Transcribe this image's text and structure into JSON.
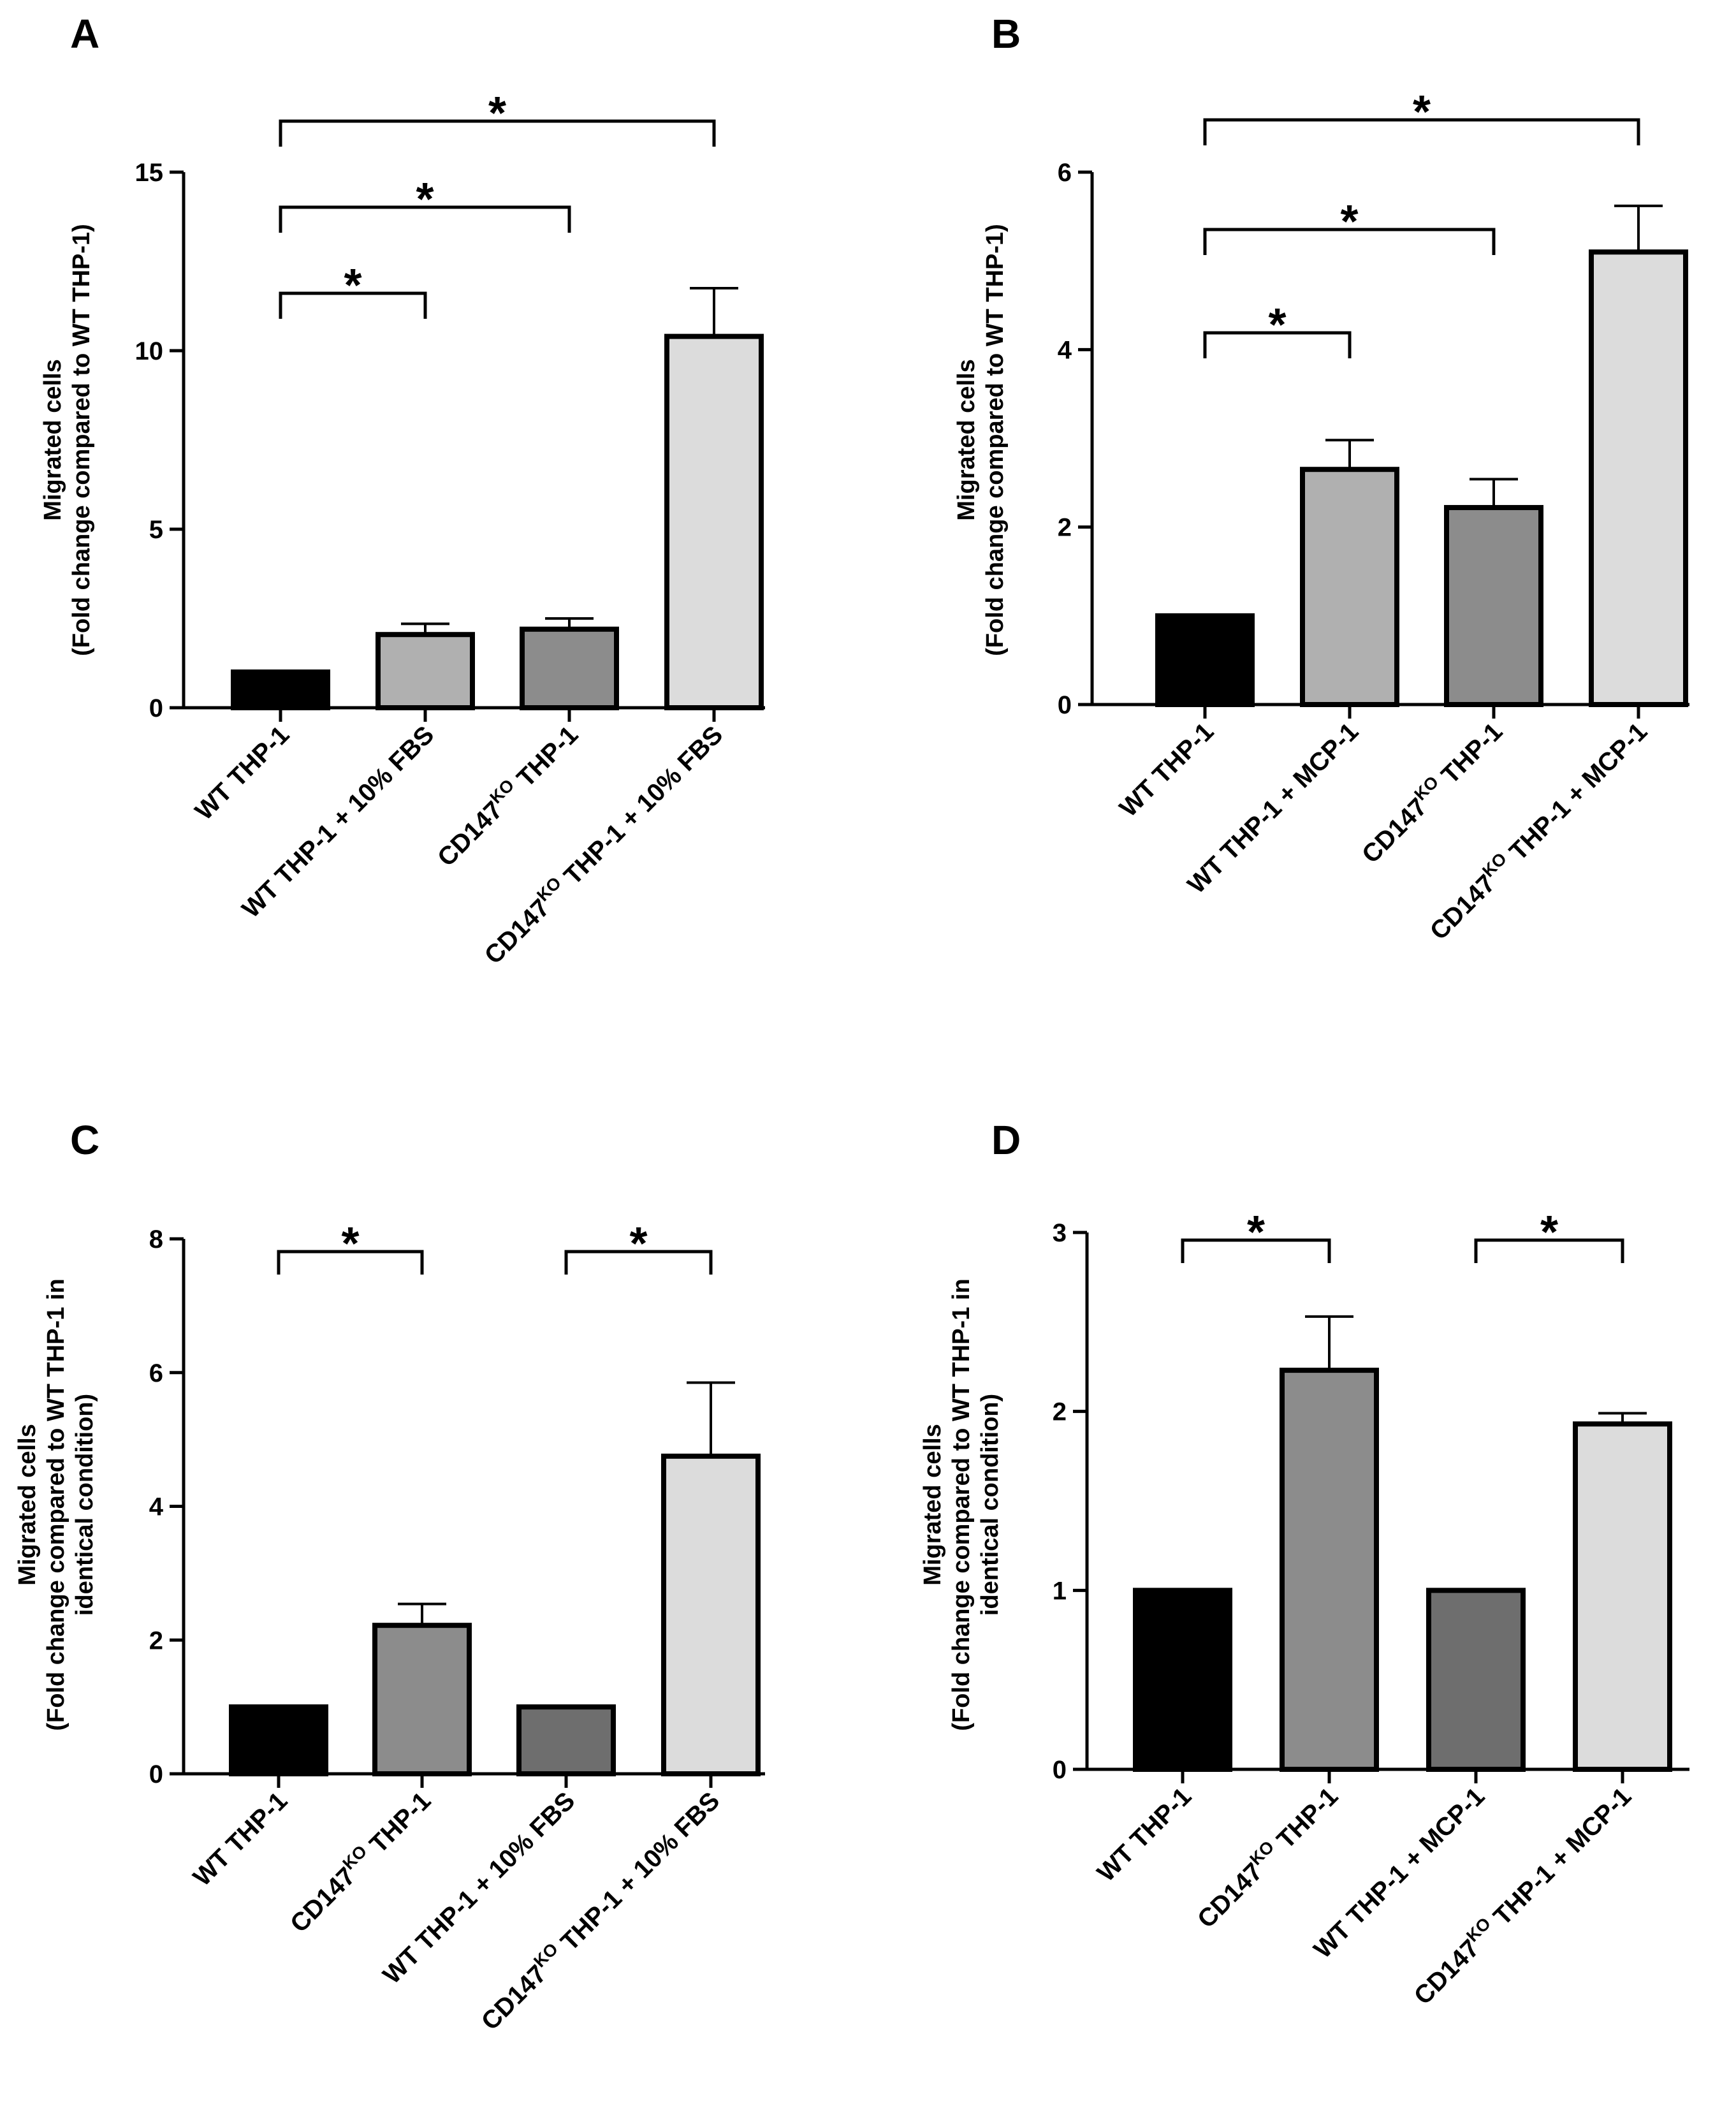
{
  "chart_data": [
    {
      "type": "bar",
      "panel_label": "A",
      "ylabel_lines": [
        "Migrated cells",
        "(Fold change compared to WT THP-1)"
      ],
      "ylim": [
        0,
        15
      ],
      "yticks": [
        "0",
        "5",
        "10",
        "15"
      ],
      "tick_values": [
        0,
        5,
        10,
        15
      ],
      "categories": [
        {
          "pre": "WT THP-1",
          "sup": "",
          "post": ""
        },
        {
          "pre": "WT THP-1 + 10% FBS",
          "sup": "",
          "post": ""
        },
        {
          "pre": "CD147",
          "sup": "KO",
          "post": " THP-1"
        },
        {
          "pre": "CD147",
          "sup": "KO",
          "post": " THP-1 + 10% FBS"
        }
      ],
      "values": [
        1.0,
        2.05,
        2.2,
        10.4
      ],
      "errors": [
        0,
        0.3,
        0.3,
        1.35
      ],
      "colors": [
        "#000000",
        "#b0b0b0",
        "#8c8c8c",
        "#dcdcdc"
      ],
      "significance": [
        {
          "from": 0,
          "to": 1,
          "label": "*"
        },
        {
          "from": 0,
          "to": 2,
          "label": "*"
        },
        {
          "from": 0,
          "to": 3,
          "label": "*"
        }
      ]
    },
    {
      "type": "bar",
      "panel_label": "B",
      "ylabel_lines": [
        "Migrated cells",
        "(Fold change compared to WT THP-1)"
      ],
      "ylim": [
        0,
        6
      ],
      "yticks": [
        "0",
        "2",
        "4",
        "6"
      ],
      "tick_values": [
        0,
        2,
        4,
        6
      ],
      "categories": [
        {
          "pre": "WT THP-1",
          "sup": "",
          "post": ""
        },
        {
          "pre": "WT THP-1 + MCP-1",
          "sup": "",
          "post": ""
        },
        {
          "pre": "CD147",
          "sup": "KO",
          "post": " THP-1"
        },
        {
          "pre": "CD147",
          "sup": "KO",
          "post": " THP-1 + MCP-1"
        }
      ],
      "values": [
        1.0,
        2.65,
        2.22,
        5.1
      ],
      "errors": [
        0,
        0.33,
        0.32,
        0.52
      ],
      "colors": [
        "#000000",
        "#b0b0b0",
        "#8c8c8c",
        "#dcdcdc"
      ],
      "significance": [
        {
          "from": 0,
          "to": 1,
          "label": "*"
        },
        {
          "from": 0,
          "to": 2,
          "label": "*"
        },
        {
          "from": 0,
          "to": 3,
          "label": "*"
        }
      ]
    },
    {
      "type": "bar",
      "panel_label": "C",
      "ylabel_lines": [
        "Migrated cells",
        "(Fold change compared to WT THP-1 in",
        "identical condition)"
      ],
      "ylim": [
        0,
        8
      ],
      "yticks": [
        "0",
        "2",
        "4",
        "6",
        "8"
      ],
      "tick_values": [
        0,
        2,
        4,
        6,
        8
      ],
      "categories": [
        {
          "pre": "WT THP-1",
          "sup": "",
          "post": ""
        },
        {
          "pre": "CD147",
          "sup": "KO",
          "post": " THP-1"
        },
        {
          "pre": "WT THP-1 + 10% FBS",
          "sup": "",
          "post": ""
        },
        {
          "pre": "CD147",
          "sup": "KO",
          "post": " THP-1 + 10% FBS"
        }
      ],
      "values": [
        1.0,
        2.22,
        1.0,
        4.75
      ],
      "errors": [
        0,
        0.32,
        0,
        1.1
      ],
      "colors": [
        "#000000",
        "#8c8c8c",
        "#6e6e6e",
        "#dcdcdc"
      ],
      "significance": [
        {
          "from": 0,
          "to": 1,
          "label": "*"
        },
        {
          "from": 2,
          "to": 3,
          "label": "*"
        }
      ]
    },
    {
      "type": "bar",
      "panel_label": "D",
      "ylabel_lines": [
        "Migrated cells",
        "(Fold change compared to WT THP-1 in",
        "identical condition)"
      ],
      "ylim": [
        0,
        3
      ],
      "yticks": [
        "0",
        "1",
        "2",
        "3"
      ],
      "tick_values": [
        0,
        1,
        2,
        3
      ],
      "categories": [
        {
          "pre": "WT THP-1",
          "sup": "",
          "post": ""
        },
        {
          "pre": "CD147",
          "sup": "KO",
          "post": " THP-1"
        },
        {
          "pre": "WT THP-1 + MCP-1",
          "sup": "",
          "post": ""
        },
        {
          "pre": "CD147",
          "sup": "KO",
          "post": " THP-1 + MCP-1"
        }
      ],
      "values": [
        1.0,
        2.23,
        1.0,
        1.93
      ],
      "errors": [
        0,
        0.3,
        0,
        0.06
      ],
      "colors": [
        "#000000",
        "#8c8c8c",
        "#6e6e6e",
        "#dcdcdc"
      ],
      "significance": [
        {
          "from": 0,
          "to": 1,
          "label": "*"
        },
        {
          "from": 2,
          "to": 3,
          "label": "*"
        }
      ]
    }
  ]
}
